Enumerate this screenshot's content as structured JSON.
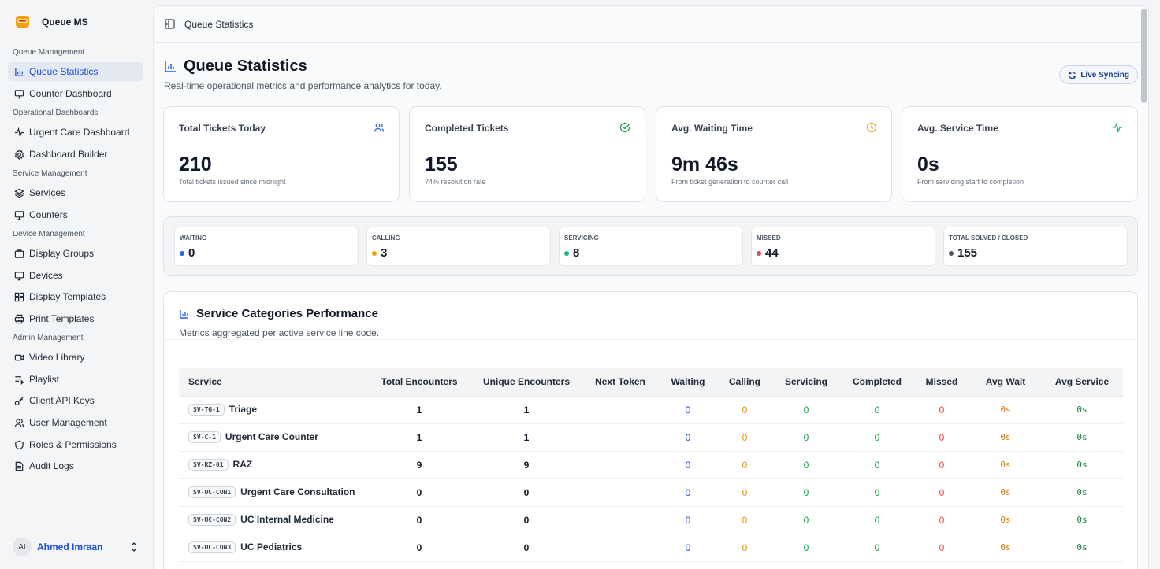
{
  "app": {
    "name": "Queue MS"
  },
  "sidebar": {
    "sections": [
      {
        "label": "Queue Management",
        "items": [
          {
            "label": "Queue Statistics",
            "icon": "bar-chart-icon",
            "active": true
          },
          {
            "label": "Counter Dashboard",
            "icon": "monitor-icon"
          }
        ]
      },
      {
        "label": "Operational Dashboards",
        "items": [
          {
            "label": "Urgent Care Dashboard",
            "icon": "activity-icon"
          },
          {
            "label": "Dashboard Builder",
            "icon": "gear-icon"
          }
        ]
      },
      {
        "label": "Service Management",
        "items": [
          {
            "label": "Services",
            "icon": "layers-icon"
          },
          {
            "label": "Counters",
            "icon": "monitor-icon"
          }
        ]
      },
      {
        "label": "Device Management",
        "items": [
          {
            "label": "Display Groups",
            "icon": "folder-icon"
          },
          {
            "label": "Devices",
            "icon": "monitor-icon"
          },
          {
            "label": "Display Templates",
            "icon": "grid-icon"
          },
          {
            "label": "Print Templates",
            "icon": "printer-icon"
          }
        ]
      },
      {
        "label": "Admin Management",
        "items": [
          {
            "label": "Video Library",
            "icon": "video-icon"
          },
          {
            "label": "Playlist",
            "icon": "playlist-icon"
          },
          {
            "label": "Client API Keys",
            "icon": "key-icon"
          },
          {
            "label": "User Management",
            "icon": "users-icon"
          },
          {
            "label": "Roles & Permissions",
            "icon": "shield-icon"
          },
          {
            "label": "Audit Logs",
            "icon": "file-icon"
          }
        ]
      }
    ],
    "user": {
      "initials": "AI",
      "name": "Ahmed Imraan"
    }
  },
  "topbar": {
    "title": "Queue Statistics"
  },
  "page": {
    "title": "Queue Statistics",
    "subtitle": "Real-time operational metrics and performance analytics for today.",
    "live_label": "Live Syncing"
  },
  "cards": [
    {
      "title": "Total Tickets Today",
      "value": "210",
      "sub": "Total tickets issued since midnight",
      "icon": "users-icon",
      "color": "#2563eb"
    },
    {
      "title": "Completed Tickets",
      "value": "155",
      "sub": "74% resolution rate",
      "icon": "check-circle-icon",
      "color": "#16a34a"
    },
    {
      "title": "Avg. Waiting Time",
      "value": "9m 46s",
      "sub": "From ticket generation to counter call",
      "icon": "clock-icon",
      "color": "#f59e0b"
    },
    {
      "title": "Avg. Service Time",
      "value": "0s",
      "sub": "From servicing start to completion",
      "icon": "activity-icon",
      "color": "#10b981"
    }
  ],
  "stats": [
    {
      "label": "WAITING",
      "value": "0",
      "color": "#2563eb"
    },
    {
      "label": "CALLING",
      "value": "3",
      "color": "#f59e0b"
    },
    {
      "label": "SERVICING",
      "value": "8",
      "color": "#10b981"
    },
    {
      "label": "MISSED",
      "value": "44",
      "color": "#ef4444"
    },
    {
      "label": "TOTAL SOLVED / CLOSED",
      "value": "155",
      "color": "#4b5563"
    }
  ],
  "performance": {
    "title": "Service Categories Performance",
    "subtitle": "Metrics aggregated per active service line code.",
    "columns": [
      "Service",
      "Total Encounters",
      "Unique Encounters",
      "Next Token",
      "Waiting",
      "Calling",
      "Servicing",
      "Completed",
      "Missed",
      "Avg Wait",
      "Avg Service"
    ],
    "rows": [
      {
        "code": "SV-TG-1",
        "name": "Triage",
        "total": "1",
        "unique": "1",
        "next": "",
        "waiting": "0",
        "calling": "0",
        "servicing": "0",
        "completed": "0",
        "missed": "0",
        "avg_wait": "0s",
        "avg_service": "0s"
      },
      {
        "code": "SV-C-1",
        "name": "Urgent Care Counter",
        "total": "1",
        "unique": "1",
        "next": "",
        "waiting": "0",
        "calling": "0",
        "servicing": "0",
        "completed": "0",
        "missed": "0",
        "avg_wait": "0s",
        "avg_service": "0s"
      },
      {
        "code": "SV-RZ-01",
        "name": "RAZ",
        "total": "9",
        "unique": "9",
        "next": "",
        "waiting": "0",
        "calling": "0",
        "servicing": "0",
        "completed": "0",
        "missed": "0",
        "avg_wait": "0s",
        "avg_service": "0s"
      },
      {
        "code": "SV-UC-CON1",
        "name": "Urgent Care Consultation",
        "total": "0",
        "unique": "0",
        "next": "",
        "waiting": "0",
        "calling": "0",
        "servicing": "0",
        "completed": "0",
        "missed": "0",
        "avg_wait": "0s",
        "avg_service": "0s"
      },
      {
        "code": "SV-UC-CON2",
        "name": "UC Internal Medicine",
        "total": "0",
        "unique": "0",
        "next": "",
        "waiting": "0",
        "calling": "0",
        "servicing": "0",
        "completed": "0",
        "missed": "0",
        "avg_wait": "0s",
        "avg_service": "0s"
      },
      {
        "code": "SV-UC-CON3",
        "name": "UC Pediatrics",
        "total": "0",
        "unique": "0",
        "next": "",
        "waiting": "0",
        "calling": "0",
        "servicing": "0",
        "completed": "0",
        "missed": "0",
        "avg_wait": "0s",
        "avg_service": "0s"
      }
    ]
  }
}
